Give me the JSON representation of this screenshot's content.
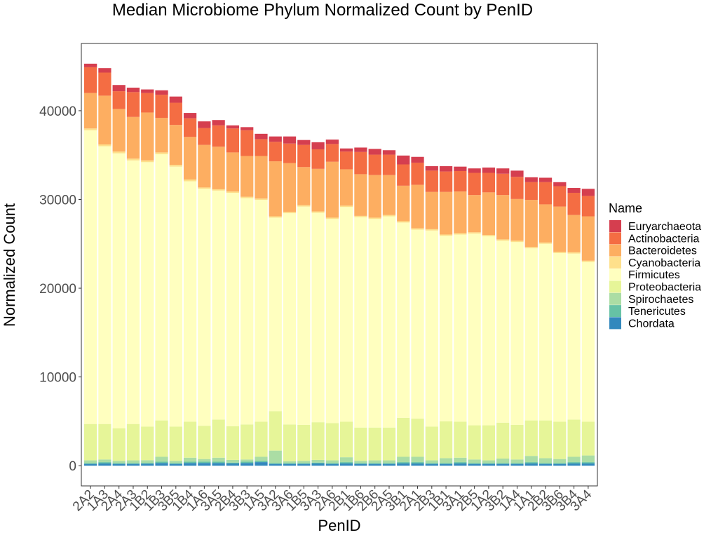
{
  "chart_data": {
    "type": "bar",
    "stacked": true,
    "title": "Median Microbiome Phylum Normalized Count by PenID",
    "xlabel": "PenID",
    "ylabel": "Normalized Count",
    "ylim": [
      -2200,
      47500
    ],
    "yticks": [
      0,
      10000,
      20000,
      30000,
      40000
    ],
    "ytick_labels": [
      "0",
      "10000",
      "20000",
      "30000",
      "40000"
    ],
    "grid": false,
    "legend_title": "Name",
    "legend_position": "right",
    "categories": [
      "2A2",
      "1A3",
      "2A4",
      "2A3",
      "1B2",
      "1B3",
      "3B5",
      "1B4",
      "1A6",
      "3A5",
      "2B4",
      "3B3",
      "1A5",
      "3A2",
      "3A6",
      "1B5",
      "3A3",
      "2A6",
      "2B1",
      "1B6",
      "2B6",
      "2A5",
      "3B1",
      "2A1",
      "2B3",
      "1B1",
      "3A1",
      "2B5",
      "1A2",
      "3B2",
      "1A4",
      "1A1",
      "2B2",
      "3B6",
      "3B4",
      "3A4"
    ],
    "series": [
      {
        "name": "Chordata",
        "color": "#3288BD",
        "values": [
          200,
          250,
          200,
          200,
          220,
          300,
          200,
          300,
          300,
          300,
          250,
          300,
          400,
          200,
          200,
          200,
          250,
          200,
          250,
          200,
          200,
          200,
          250,
          250,
          200,
          200,
          250,
          200,
          200,
          200,
          200,
          250,
          200,
          200,
          250,
          250
        ]
      },
      {
        "name": "Tenericutes",
        "color": "#66C2A5",
        "values": [
          100,
          150,
          100,
          100,
          100,
          150,
          100,
          150,
          150,
          150,
          100,
          150,
          150,
          100,
          100,
          100,
          100,
          100,
          150,
          100,
          100,
          100,
          150,
          150,
          100,
          100,
          150,
          100,
          100,
          100,
          100,
          150,
          100,
          100,
          150,
          150
        ]
      },
      {
        "name": "Spirochaetes",
        "color": "#ABDDA4",
        "values": [
          300,
          300,
          250,
          300,
          300,
          550,
          250,
          450,
          300,
          450,
          300,
          250,
          450,
          1400,
          200,
          250,
          300,
          300,
          550,
          250,
          300,
          300,
          600,
          600,
          300,
          550,
          500,
          400,
          300,
          500,
          400,
          700,
          550,
          450,
          600,
          750
        ]
      },
      {
        "name": "Proteobacteria",
        "color": "#E6F598",
        "values": [
          4100,
          4000,
          3650,
          4100,
          3780,
          4100,
          3850,
          4050,
          3750,
          4300,
          3800,
          3950,
          3950,
          4450,
          4150,
          4050,
          4250,
          4200,
          4000,
          3750,
          3700,
          3700,
          4400,
          4300,
          3800,
          4150,
          4050,
          3850,
          3950,
          4050,
          3900,
          4000,
          4250,
          4200,
          4200,
          3800
        ]
      },
      {
        "name": "Firmicutes",
        "color": "#FFFFBF",
        "values": [
          33100,
          31300,
          31000,
          29700,
          29800,
          30000,
          29300,
          27100,
          26700,
          25800,
          26300,
          25500,
          25000,
          21800,
          23800,
          24600,
          23600,
          23000,
          24200,
          23700,
          23500,
          23800,
          22000,
          21300,
          22100,
          20900,
          21100,
          21600,
          21300,
          20500,
          20600,
          19400,
          19900,
          19000,
          18700,
          18000
        ]
      },
      {
        "name": "Cyanobacteria",
        "color": "#FEE08B",
        "values": [
          200,
          200,
          200,
          200,
          200,
          200,
          200,
          200,
          150,
          150,
          150,
          150,
          150,
          150,
          150,
          150,
          150,
          150,
          150,
          150,
          150,
          150,
          150,
          150,
          150,
          150,
          150,
          150,
          150,
          150,
          150,
          150,
          150,
          150,
          150,
          150
        ]
      },
      {
        "name": "Bacteroidetes",
        "color": "#FDAE61",
        "values": [
          4000,
          5500,
          4800,
          4700,
          5400,
          3900,
          4500,
          4800,
          4800,
          4800,
          4400,
          4600,
          4800,
          6200,
          5500,
          4300,
          4800,
          6300,
          4100,
          4700,
          4800,
          4500,
          4000,
          4900,
          4200,
          4800,
          4700,
          4200,
          4800,
          5000,
          4700,
          5300,
          4300,
          5100,
          4200,
          5000
        ]
      },
      {
        "name": "Actinobacteria",
        "color": "#F46D43",
        "values": [
          2900,
          2600,
          2000,
          2800,
          2200,
          2600,
          2500,
          2100,
          1900,
          2400,
          2700,
          2900,
          1900,
          2200,
          2200,
          2500,
          2200,
          2000,
          2000,
          2500,
          2300,
          2300,
          2400,
          2500,
          2400,
          2300,
          2300,
          2500,
          2200,
          2400,
          2500,
          2000,
          2500,
          2300,
          2500,
          2300
        ]
      },
      {
        "name": "Euryarchaeota",
        "color": "#D53E4F",
        "values": [
          400,
          500,
          700,
          500,
          400,
          500,
          700,
          600,
          750,
          600,
          350,
          350,
          600,
          600,
          800,
          550,
          800,
          500,
          350,
          500,
          650,
          500,
          1000,
          650,
          500,
          600,
          500,
          500,
          600,
          600,
          700,
          550,
          500,
          450,
          550,
          800
        ]
      }
    ],
    "legend_order": [
      "Euryarchaeota",
      "Actinobacteria",
      "Bacteroidetes",
      "Cyanobacteria",
      "Firmicutes",
      "Proteobacteria",
      "Spirochaetes",
      "Tenericutes",
      "Chordata"
    ]
  }
}
